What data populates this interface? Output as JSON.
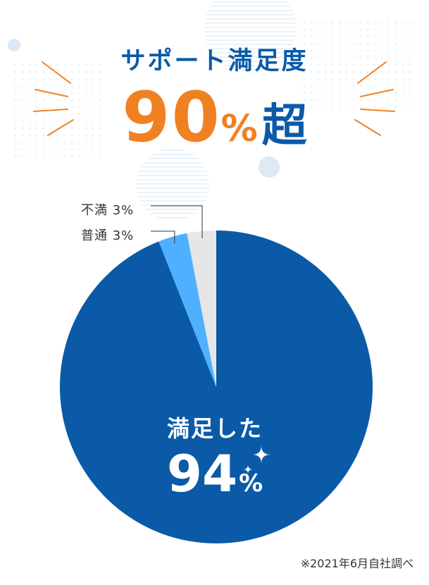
{
  "header": {
    "title": "サポート満足度",
    "big_value": "90",
    "big_unit": "%",
    "big_suffix": "超"
  },
  "chart_data": {
    "type": "pie",
    "categories": [
      "満足した",
      "普通",
      "不満"
    ],
    "values": [
      94,
      3,
      3
    ],
    "colors": [
      "#0a5aa8",
      "#4fb0ff",
      "#e6e6e6"
    ],
    "labels": [
      {
        "name": "満足した",
        "value": "94",
        "unit": "%"
      },
      {
        "name": "普通",
        "value": "3%"
      },
      {
        "name": "不満",
        "value": "3%"
      }
    ]
  },
  "footnote": "※2021年6月自社調べ"
}
